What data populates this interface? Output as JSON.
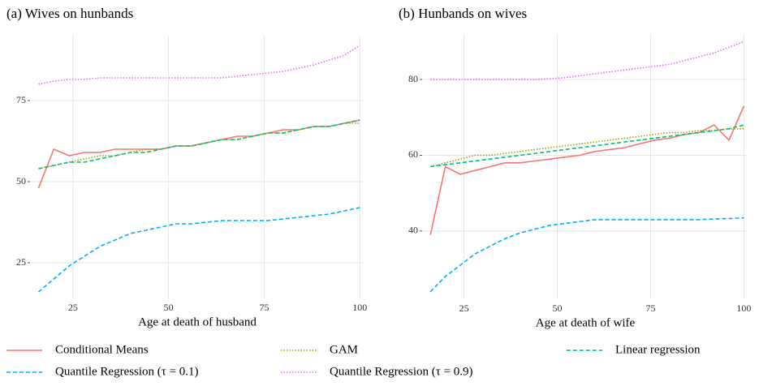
{
  "chart_data": [
    {
      "type": "line",
      "title": "(a) Wives on hunbands",
      "x_label": "Age at death of husband",
      "x": [
        16,
        20,
        24,
        28,
        32,
        36,
        40,
        44,
        48,
        52,
        56,
        60,
        64,
        68,
        72,
        76,
        80,
        84,
        88,
        92,
        96,
        100
      ],
      "xlim": [
        14,
        101
      ],
      "xticks": [
        25,
        50,
        75,
        100
      ],
      "ylim": [
        14,
        95
      ],
      "yticks": [
        25,
        50,
        75
      ],
      "grid": true,
      "series": [
        {
          "name": "Conditional Means",
          "color": "#F8766D",
          "dash": "solid",
          "values": [
            48,
            60,
            58,
            59,
            59,
            60,
            60,
            60,
            60,
            61,
            61,
            62,
            63,
            64,
            64,
            65,
            66,
            66,
            67,
            67,
            68,
            69
          ]
        },
        {
          "name": "GAM",
          "color": "#A3A500",
          "dash": "dotted",
          "values": [
            54,
            55,
            56,
            57,
            58,
            58,
            59,
            60,
            60,
            61,
            61,
            62,
            63,
            63,
            64,
            65,
            65,
            66,
            67,
            67,
            68,
            68
          ]
        },
        {
          "name": "Linear regression",
          "color": "#00BF7D",
          "dash": "dashed",
          "values": [
            54,
            55,
            56,
            56,
            57,
            58,
            59,
            59,
            60,
            61,
            61,
            62,
            63,
            63,
            64,
            65,
            65,
            66,
            67,
            67,
            68,
            69
          ]
        },
        {
          "name": "Quantile Regression (τ = 0.1)",
          "color": "#00B0F6",
          "dash": "dashed",
          "values": [
            16,
            20,
            24,
            27,
            30,
            32,
            34,
            35,
            36,
            37,
            37,
            37.5,
            38,
            38,
            38,
            38,
            38.5,
            39,
            39.5,
            40,
            41,
            42
          ]
        },
        {
          "name": "Quantile Regression (τ = 0.9)",
          "color": "#E76BF3",
          "dash": "dotted",
          "values": [
            80,
            81,
            81.5,
            81.5,
            82,
            82,
            82,
            82,
            82,
            82,
            82,
            82,
            82,
            82.5,
            83,
            83.5,
            84,
            85,
            86,
            87.5,
            89,
            92
          ]
        }
      ]
    },
    {
      "type": "line",
      "title": "(b) Hunbands on wives",
      "x_label": "Age at death of wife",
      "x": [
        16,
        20,
        24,
        28,
        32,
        36,
        40,
        44,
        48,
        52,
        56,
        60,
        64,
        68,
        72,
        76,
        80,
        84,
        88,
        92,
        96,
        100
      ],
      "xlim": [
        14,
        101
      ],
      "xticks": [
        25,
        50,
        75,
        100
      ],
      "ylim": [
        22,
        92
      ],
      "yticks": [
        40,
        60,
        80
      ],
      "grid": true,
      "series": [
        {
          "color": "#F8766D",
          "dash": "solid",
          "values": [
            39,
            57,
            55,
            56,
            57,
            58,
            58,
            58.5,
            59,
            59.5,
            60,
            61,
            61.5,
            62,
            63,
            64,
            64.5,
            65.5,
            66,
            68,
            64,
            73
          ]
        },
        {
          "color": "#A3A500",
          "dash": "dotted",
          "values": [
            57,
            58,
            59,
            60,
            60,
            60.5,
            61,
            61.5,
            62,
            62.5,
            63,
            63.5,
            64,
            64.5,
            65,
            65.5,
            66,
            66,
            66.5,
            66.5,
            67,
            67
          ]
        },
        {
          "color": "#00BF7D",
          "dash": "dashed",
          "values": [
            57,
            57.5,
            58,
            58.5,
            59,
            59.5,
            60,
            60.5,
            61,
            61.5,
            62,
            62.5,
            63,
            63.5,
            64,
            64.5,
            65,
            65.5,
            66,
            66.5,
            67,
            68
          ]
        },
        {
          "color": "#00B0F6",
          "dash": "dashed",
          "values": [
            24,
            28,
            31,
            34,
            36,
            38,
            39.5,
            40.5,
            41.5,
            42,
            42.5,
            43,
            43,
            43,
            43,
            43,
            43,
            43,
            43,
            43.2,
            43.3,
            43.5
          ]
        },
        {
          "color": "#E76BF3",
          "dash": "dotted",
          "values": [
            80,
            80,
            80,
            80,
            80,
            80,
            80,
            80,
            80.2,
            80.5,
            81,
            81.5,
            82,
            82.5,
            83,
            83.5,
            84,
            85,
            86,
            87,
            88.5,
            90
          ]
        }
      ]
    }
  ]
}
